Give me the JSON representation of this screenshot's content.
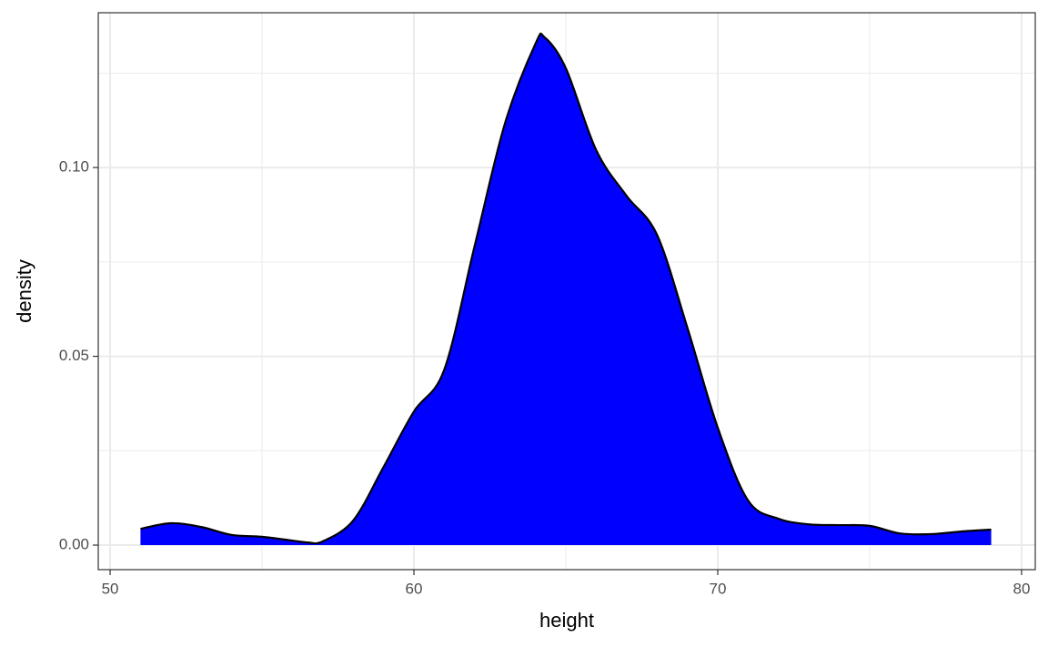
{
  "chart_data": {
    "type": "density",
    "x_label": "height",
    "y_label": "density",
    "color": "#0000ff",
    "line_color": "#000000",
    "x": [
      51,
      52,
      53,
      54,
      55,
      56,
      56.5,
      57,
      58,
      59,
      60,
      61,
      62,
      63,
      64,
      64.3,
      65,
      66,
      67,
      68,
      69,
      70,
      71,
      72,
      73,
      74,
      75,
      76,
      77,
      78,
      79
    ],
    "values": [
      0.0043,
      0.0058,
      0.0048,
      0.0027,
      0.0022,
      0.0012,
      0.0007,
      0.001,
      0.0065,
      0.0207,
      0.0354,
      0.0465,
      0.0793,
      0.1118,
      0.1328,
      0.1345,
      0.1263,
      0.1046,
      0.0925,
      0.0822,
      0.0576,
      0.0311,
      0.0118,
      0.007,
      0.0055,
      0.0053,
      0.0051,
      0.0031,
      0.0029,
      0.0036,
      0.0041
    ],
    "xlim": [
      49.61,
      80.45
    ],
    "ylim": [
      -0.0065,
      0.141
    ],
    "xticks": [
      50,
      60,
      70,
      80
    ],
    "yticks": [
      {
        "value": 0,
        "label": "0.00"
      },
      {
        "value": 0.05,
        "label": "0.05"
      },
      {
        "value": 0.1,
        "label": "0.10"
      }
    ],
    "xminorticks": [
      55,
      65,
      75
    ],
    "yminorticks": [
      0.025,
      0.075,
      0.125
    ],
    "grid": true
  }
}
